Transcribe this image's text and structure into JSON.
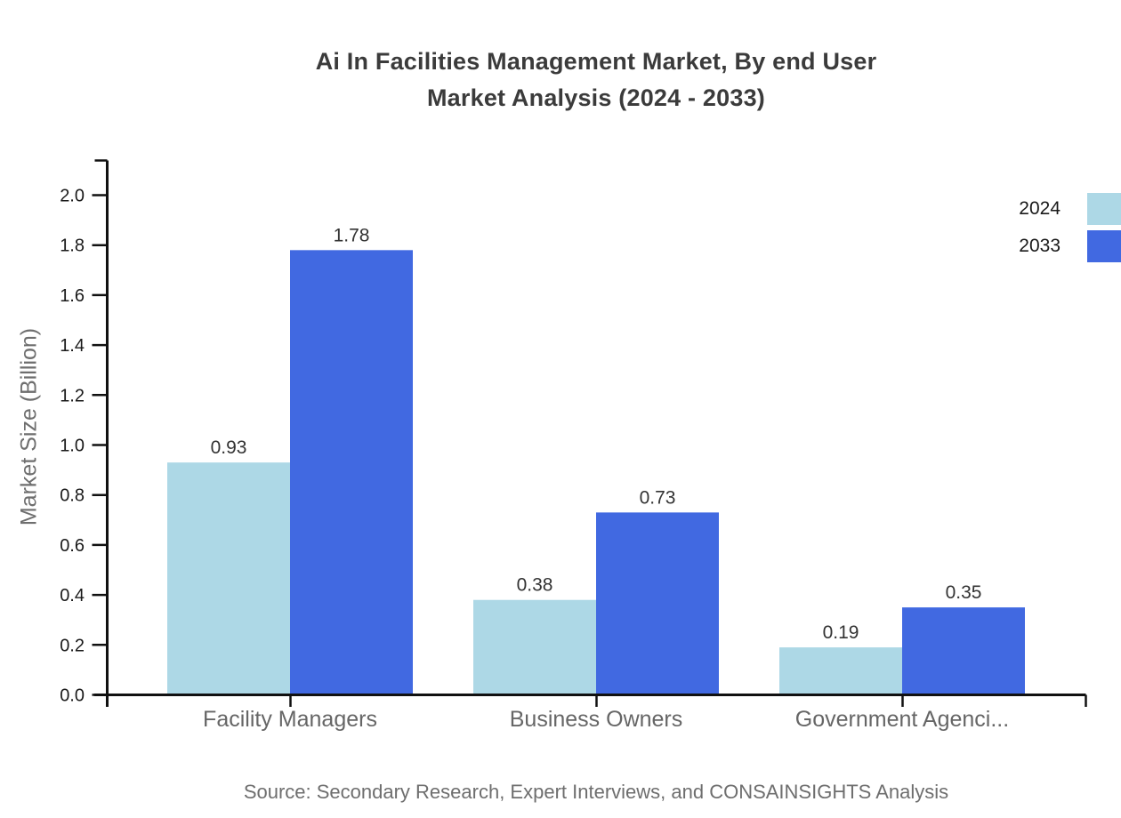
{
  "title": {
    "line1": "Ai In Facilities Management Market, By end User",
    "line2": "Market Analysis (2024 - 2033)"
  },
  "source": "Source: Secondary Research, Expert Interviews, and CONSAINSIGHTS Analysis",
  "colors": {
    "series_2024": "#ADD8E6",
    "series_2033": "#4169E1",
    "axis": "#111111",
    "tick_text": "#1a1a1a",
    "value_text": "#333333",
    "category_text": "#666666",
    "muted_text": "#6e6e6e"
  },
  "chart_data": {
    "type": "bar",
    "title": "Ai In Facilities Management Market, By end User Market Analysis (2024 - 2033)",
    "categories": [
      "Facility Managers",
      "Business Owners",
      "Government Agenci..."
    ],
    "series": [
      {
        "name": "2024",
        "color": "#ADD8E6",
        "values": [
          0.93,
          0.38,
          0.19
        ]
      },
      {
        "name": "2033",
        "color": "#4169E1",
        "values": [
          1.78,
          0.73,
          0.35
        ]
      }
    ],
    "xlabel": "",
    "ylabel": "Market Size (Billion)",
    "ylim": [
      0.0,
      2.0
    ],
    "ytick_step": 0.2,
    "ytick_labels": [
      "0.0",
      "0.2",
      "0.4",
      "0.6",
      "0.8",
      "1.0",
      "1.2",
      "1.4",
      "1.6",
      "1.8",
      "2.0"
    ],
    "grid": false,
    "legend_position": "top-right",
    "value_labels_shown": true,
    "value_labels": [
      "0.93",
      "1.78",
      "0.38",
      "0.73",
      "0.19",
      "0.35"
    ]
  }
}
